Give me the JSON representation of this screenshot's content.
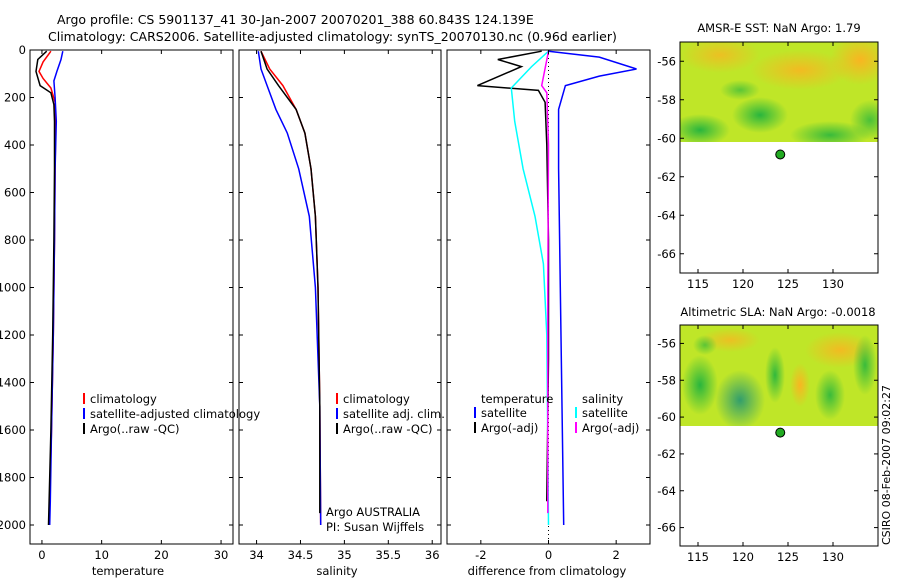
{
  "header": {
    "line1": "Argo profile: CS 5901137_41 30-Jan-2007 20070201_388 60.843S 124.139E",
    "line2": "Climatology: CARS2006. Satellite-adjusted climatology: synTS_20070130.nc (0.96d earlier)"
  },
  "colors": {
    "climatology": "#ff0000",
    "satellite": "#0000ff",
    "argo": "#000000",
    "sal_sat": "#00ffff",
    "sal_argo": "#ff00ff"
  },
  "chart_data": [
    {
      "type": "line",
      "name": "temperature-profile",
      "xlabel": "temperature",
      "xlim": [
        -2,
        32
      ],
      "xticks": [
        0,
        10,
        20,
        30
      ],
      "ylim": [
        2080,
        0
      ],
      "yticks": [
        0,
        200,
        400,
        600,
        800,
        1000,
        1200,
        1400,
        1600,
        1800,
        2000
      ],
      "series": [
        {
          "name": "climatology",
          "color": "#ff0000",
          "points": [
            [
              1.5,
              5
            ],
            [
              0.2,
              50
            ],
            [
              -0.5,
              90
            ],
            [
              0.2,
              120
            ],
            [
              1.5,
              160
            ],
            [
              2.2,
              220
            ],
            [
              2.3,
              300
            ],
            [
              2.2,
              500
            ],
            [
              2.1,
              800
            ],
            [
              1.9,
              1200
            ],
            [
              1.6,
              1600
            ],
            [
              1.3,
              1900
            ],
            [
              1.2,
              2000
            ]
          ]
        },
        {
          "name": "satellite-adjusted climatology",
          "color": "#0000ff",
          "points": [
            [
              3.5,
              5
            ],
            [
              3.2,
              40
            ],
            [
              2.5,
              90
            ],
            [
              2.0,
              130
            ],
            [
              2.2,
              200
            ],
            [
              2.4,
              300
            ],
            [
              2.2,
              500
            ],
            [
              2.1,
              800
            ],
            [
              1.9,
              1200
            ],
            [
              1.6,
              1600
            ],
            [
              1.4,
              1900
            ],
            [
              1.3,
              2000
            ]
          ]
        },
        {
          "name": "Argo(..raw -QC)",
          "color": "#000000",
          "points": [
            [
              0.8,
              5
            ],
            [
              -0.7,
              40
            ],
            [
              -1.0,
              90
            ],
            [
              -0.3,
              150
            ],
            [
              1.5,
              180
            ],
            [
              2.0,
              230
            ],
            [
              2.1,
              300
            ],
            [
              2.1,
              500
            ],
            [
              2.0,
              800
            ],
            [
              1.8,
              1200
            ],
            [
              1.5,
              1600
            ],
            [
              1.2,
              1900
            ],
            [
              1.1,
              2000
            ]
          ]
        }
      ],
      "legend": [
        "climatology",
        "satellite-adjusted climatology",
        "Argo(..raw -QC)"
      ]
    },
    {
      "type": "line",
      "name": "salinity-profile",
      "xlabel": "salinity",
      "xlim": [
        33.8,
        36.1
      ],
      "xticks": [
        34,
        34.5,
        35,
        35.5,
        36
      ],
      "xtick_labels": [
        "34",
        "34.5",
        "35",
        "35.5",
        "36"
      ],
      "ylim": [
        2080,
        0
      ],
      "series": [
        {
          "name": "climatology",
          "color": "#ff0000",
          "points": [
            [
              34.05,
              5
            ],
            [
              34.15,
              80
            ],
            [
              34.3,
              150
            ],
            [
              34.45,
              250
            ],
            [
              34.55,
              350
            ],
            [
              34.62,
              500
            ],
            [
              34.67,
              700
            ],
            [
              34.7,
              1000
            ],
            [
              34.72,
              1500
            ],
            [
              34.73,
              2000
            ]
          ]
        },
        {
          "name": "satellite adj. clim.",
          "color": "#0000ff",
          "points": [
            [
              34.02,
              5
            ],
            [
              34.05,
              80
            ],
            [
              34.12,
              150
            ],
            [
              34.22,
              250
            ],
            [
              34.35,
              350
            ],
            [
              34.48,
              500
            ],
            [
              34.6,
              700
            ],
            [
              34.67,
              1000
            ],
            [
              34.72,
              1500
            ],
            [
              34.73,
              2000
            ]
          ]
        },
        {
          "name": "Argo(..raw -QC)",
          "color": "#000000",
          "points": [
            [
              34.05,
              5
            ],
            [
              34.12,
              80
            ],
            [
              34.25,
              150
            ],
            [
              34.45,
              250
            ],
            [
              34.55,
              350
            ],
            [
              34.62,
              500
            ],
            [
              34.67,
              700
            ],
            [
              34.7,
              1000
            ],
            [
              34.72,
              1500
            ],
            [
              34.72,
              1950
            ]
          ]
        }
      ],
      "legend": [
        "climatology",
        "satellite adj. clim.",
        "Argo(..raw -QC)"
      ],
      "annotation": [
        "Argo AUSTRALIA",
        "PI: Susan Wijffels"
      ]
    },
    {
      "type": "line",
      "name": "difference-profile",
      "xlabel": "difference from climatology",
      "xlim": [
        -3,
        3
      ],
      "xticks": [
        -2,
        0,
        2
      ],
      "ylim": [
        2080,
        0
      ],
      "series": [
        {
          "name": "temperature satellite",
          "color": "#0000ff",
          "points": [
            [
              0,
              5
            ],
            [
              1.5,
              30
            ],
            [
              2.6,
              80
            ],
            [
              1.5,
              110
            ],
            [
              0.5,
              150
            ],
            [
              0.3,
              250
            ],
            [
              0.3,
              500
            ],
            [
              0.35,
              1000
            ],
            [
              0.4,
              1500
            ],
            [
              0.45,
              2000
            ]
          ]
        },
        {
          "name": "temperature Argo(-adj)",
          "color": "#000000",
          "points": [
            [
              -0.2,
              5
            ],
            [
              -1.5,
              40
            ],
            [
              -0.8,
              70
            ],
            [
              -2.1,
              150
            ],
            [
              -0.3,
              170
            ],
            [
              -0.1,
              220
            ],
            [
              -0.05,
              400
            ],
            [
              0,
              800
            ],
            [
              0,
              1300
            ],
            [
              -0.05,
              1900
            ]
          ]
        },
        {
          "name": "salinity satellite",
          "color": "#00ffff",
          "points": [
            [
              0,
              5
            ],
            [
              -0.5,
              70
            ],
            [
              -1.1,
              160
            ],
            [
              -1.0,
              300
            ],
            [
              -0.75,
              500
            ],
            [
              -0.4,
              700
            ],
            [
              -0.15,
              900
            ],
            [
              -0.05,
              1200
            ],
            [
              0,
              2000
            ]
          ]
        },
        {
          "name": "salinity Argo(-adj)",
          "color": "#ff00ff",
          "points": [
            [
              0,
              5
            ],
            [
              -0.2,
              150
            ],
            [
              -0.05,
              180
            ],
            [
              0,
              400
            ],
            [
              -0.02,
              1000
            ],
            [
              -0.02,
              1950
            ]
          ]
        }
      ],
      "legend_left_title": "temperature",
      "legend_right_title": "salinity",
      "legend_left": [
        "satellite",
        "Argo(-adj)"
      ],
      "legend_right": [
        "satellite",
        "Argo(-adj)"
      ]
    },
    {
      "type": "heatmap",
      "name": "amsre-sst-map",
      "title": "AMSR-E SST: NaN Argo: 1.79",
      "xlim": [
        113,
        135
      ],
      "xticks": [
        115,
        120,
        125,
        130
      ],
      "ylim": [
        -67,
        -55
      ],
      "yticks": [
        -56,
        -58,
        -60,
        -62,
        -64,
        -66
      ],
      "data_extent_lat": [
        -60,
        -55
      ],
      "argo_position": [
        124.139,
        -60.843
      ]
    },
    {
      "type": "heatmap",
      "name": "altimetric-sla-map",
      "title": "Altimetric SLA: NaN Argo: -0.0018",
      "xlim": [
        113,
        135
      ],
      "xticks": [
        115,
        120,
        125,
        130
      ],
      "ylim": [
        -67,
        -55
      ],
      "yticks": [
        -56,
        -58,
        -60,
        -62,
        -64,
        -66
      ],
      "data_extent_lat": [
        -60,
        -55
      ],
      "argo_position": [
        124.139,
        -60.843
      ]
    }
  ],
  "footer": {
    "credit": "CSIRO 08-Feb-2007 09:02:27"
  }
}
